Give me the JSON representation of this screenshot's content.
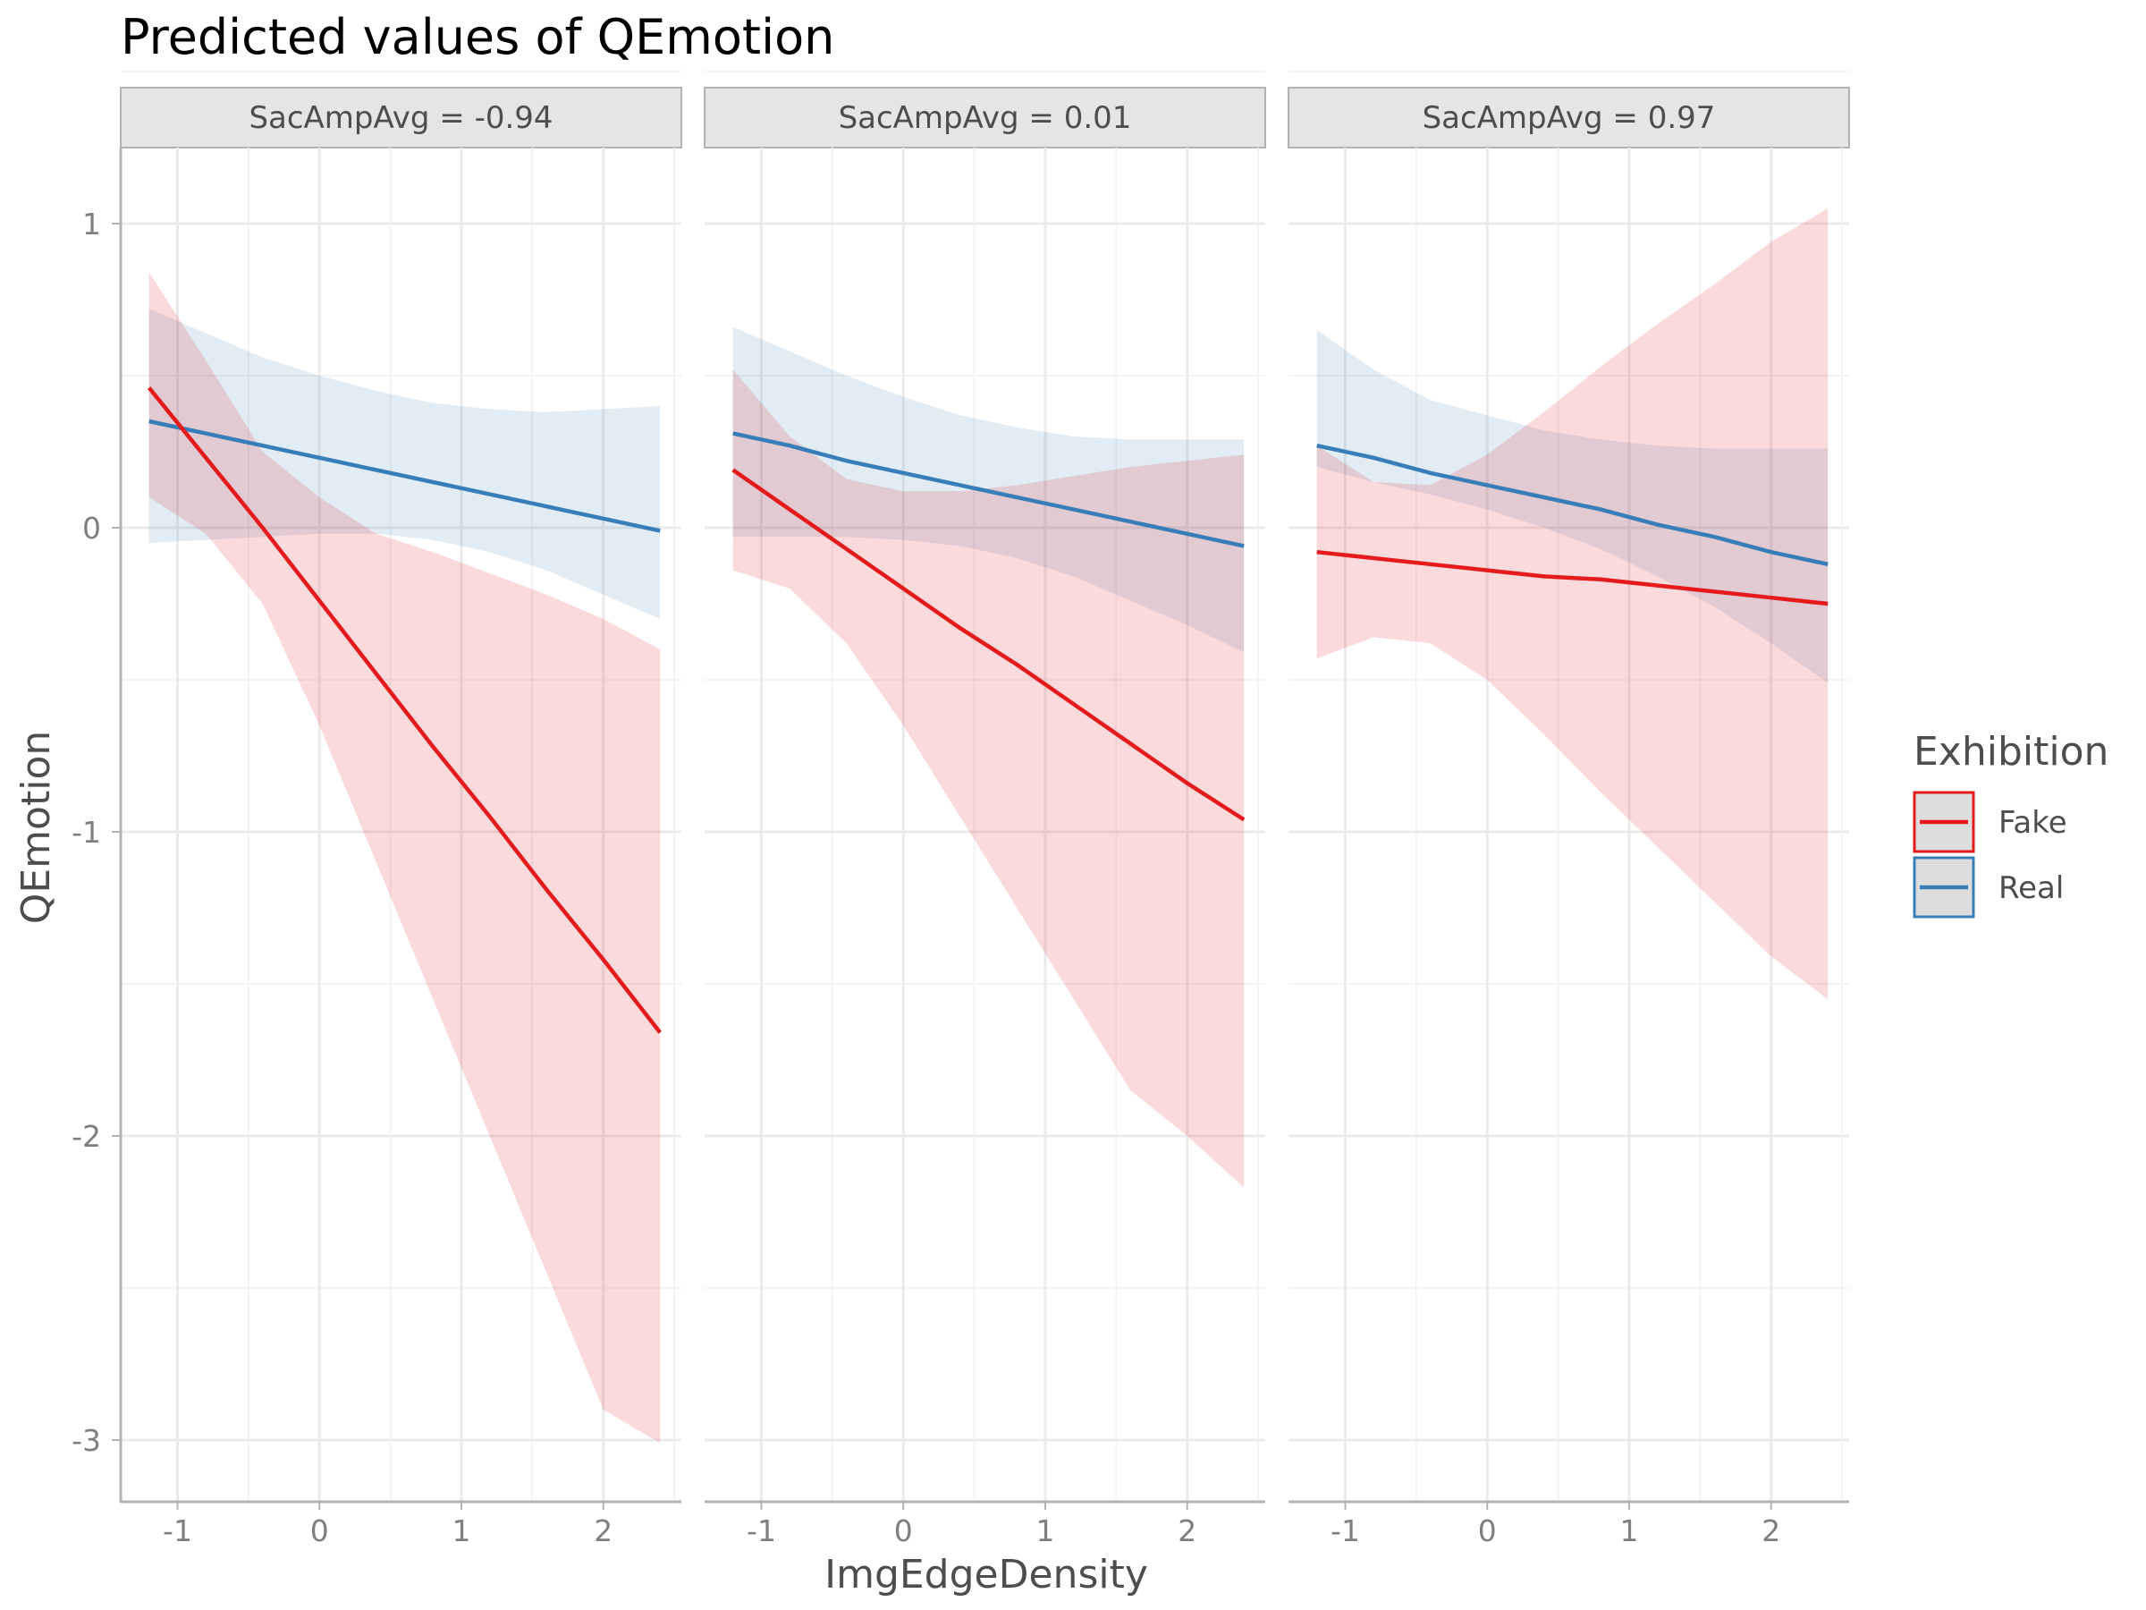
{
  "chart_data": {
    "type": "line",
    "title": "Predicted values of QEmotion",
    "xlabel": "ImgEdgeDensity",
    "ylabel": "QEmotion",
    "xlim": [
      -1.4,
      2.55
    ],
    "ylim": [
      -3.2,
      1.25
    ],
    "x_ticks": [
      -1,
      0,
      1,
      2
    ],
    "x_tick_labels": [
      "-1",
      "0",
      "1",
      "2"
    ],
    "y_ticks": [
      1,
      0,
      -1,
      -2,
      -3
    ],
    "y_tick_labels": [
      "1",
      "0",
      "-1",
      "-2",
      "-3"
    ],
    "legend": {
      "title": "Exhibition",
      "position": "right",
      "entries": [
        {
          "label": "Fake",
          "color": "#E41A1C"
        },
        {
          "label": "Real",
          "color": "#377EB8"
        }
      ]
    },
    "panels": [
      {
        "label": "SacAmpAvg = -0.94",
        "series": [
          {
            "name": "Fake",
            "color": "#E41A1C",
            "x": [
              -1.2,
              -0.8,
              -0.4,
              0.0,
              0.4,
              0.8,
              1.2,
              1.6,
              2.0,
              2.4
            ],
            "y": [
              0.46,
              0.23,
              0.0,
              -0.24,
              -0.48,
              -0.72,
              -0.95,
              -1.19,
              -1.42,
              -1.66
            ],
            "lower": [
              0.1,
              -0.02,
              -0.25,
              -0.65,
              -1.1,
              -1.55,
              -2.0,
              -2.45,
              -2.9,
              -3.01
            ],
            "upper": [
              0.84,
              0.55,
              0.25,
              0.1,
              -0.02,
              -0.08,
              -0.15,
              -0.22,
              -0.3,
              -0.4
            ]
          },
          {
            "name": "Real",
            "color": "#377EB8",
            "x": [
              -1.2,
              -0.8,
              -0.4,
              0.0,
              0.4,
              0.8,
              1.2,
              1.6,
              2.0,
              2.4
            ],
            "y": [
              0.35,
              0.31,
              0.27,
              0.23,
              0.19,
              0.15,
              0.11,
              0.07,
              0.03,
              -0.01
            ],
            "lower": [
              -0.05,
              -0.04,
              -0.03,
              -0.02,
              -0.02,
              -0.04,
              -0.08,
              -0.14,
              -0.22,
              -0.3
            ],
            "upper": [
              0.72,
              0.64,
              0.56,
              0.5,
              0.45,
              0.41,
              0.39,
              0.38,
              0.39,
              0.4
            ]
          }
        ]
      },
      {
        "label": "SacAmpAvg = 0.01",
        "series": [
          {
            "name": "Fake",
            "color": "#E41A1C",
            "x": [
              -1.2,
              -0.8,
              -0.4,
              0.0,
              0.4,
              0.8,
              1.2,
              1.6,
              2.0,
              2.4
            ],
            "y": [
              0.19,
              0.06,
              -0.07,
              -0.2,
              -0.33,
              -0.45,
              -0.58,
              -0.71,
              -0.84,
              -0.96
            ],
            "lower": [
              -0.14,
              -0.2,
              -0.38,
              -0.65,
              -0.95,
              -1.25,
              -1.55,
              -1.85,
              -2.0,
              -2.17
            ],
            "upper": [
              0.52,
              0.3,
              0.16,
              0.12,
              0.12,
              0.14,
              0.17,
              0.2,
              0.22,
              0.24
            ]
          },
          {
            "name": "Real",
            "color": "#377EB8",
            "x": [
              -1.2,
              -0.8,
              -0.4,
              0.0,
              0.4,
              0.8,
              1.2,
              1.6,
              2.0,
              2.4
            ],
            "y": [
              0.31,
              0.27,
              0.22,
              0.18,
              0.14,
              0.1,
              0.06,
              0.02,
              -0.02,
              -0.06
            ],
            "lower": [
              -0.03,
              -0.03,
              -0.03,
              -0.04,
              -0.06,
              -0.1,
              -0.16,
              -0.24,
              -0.32,
              -0.41
            ],
            "upper": [
              0.66,
              0.58,
              0.5,
              0.43,
              0.37,
              0.33,
              0.3,
              0.29,
              0.29,
              0.29
            ]
          }
        ]
      },
      {
        "label": "SacAmpAvg = 0.97",
        "series": [
          {
            "name": "Fake",
            "color": "#E41A1C",
            "x": [
              -1.2,
              -0.8,
              -0.4,
              0.0,
              0.4,
              0.8,
              1.2,
              1.6,
              2.0,
              2.4
            ],
            "y": [
              -0.08,
              -0.1,
              -0.12,
              -0.14,
              -0.16,
              -0.17,
              -0.19,
              -0.21,
              -0.23,
              -0.25
            ],
            "lower": [
              -0.43,
              -0.36,
              -0.38,
              -0.5,
              -0.68,
              -0.87,
              -1.05,
              -1.23,
              -1.41,
              -1.55
            ],
            "upper": [
              0.27,
              0.15,
              0.14,
              0.24,
              0.38,
              0.53,
              0.67,
              0.8,
              0.94,
              1.05
            ]
          },
          {
            "name": "Real",
            "color": "#377EB8",
            "x": [
              -1.2,
              -0.8,
              -0.4,
              0.0,
              0.4,
              0.8,
              1.2,
              1.6,
              2.0,
              2.4
            ],
            "y": [
              0.27,
              0.23,
              0.18,
              0.14,
              0.1,
              0.06,
              0.01,
              -0.03,
              -0.08,
              -0.12
            ],
            "lower": [
              0.2,
              0.15,
              0.11,
              0.06,
              0.0,
              -0.07,
              -0.16,
              -0.26,
              -0.38,
              -0.51
            ],
            "upper": [
              0.65,
              0.52,
              0.42,
              0.37,
              0.32,
              0.29,
              0.27,
              0.26,
              0.26,
              0.26
            ]
          }
        ]
      }
    ]
  }
}
